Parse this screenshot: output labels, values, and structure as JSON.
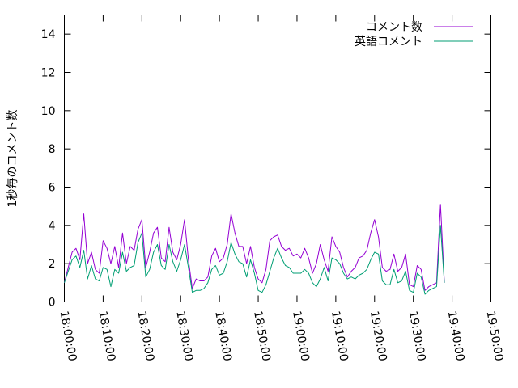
{
  "chart_data": {
    "type": "line",
    "title": "",
    "xlabel": "",
    "ylabel": "1秒毎のコメント数",
    "ylim": [
      0,
      15
    ],
    "yticks": [
      0,
      2,
      4,
      6,
      8,
      10,
      12,
      14
    ],
    "xticks": [
      "18:00:00",
      "18:10:00",
      "18:20:00",
      "18:30:00",
      "18:40:00",
      "18:50:00",
      "19:00:00",
      "19:10:00",
      "19:20:00",
      "19:30:00",
      "19:40:00",
      "19:50:00"
    ],
    "xlim_minutes": [
      0,
      110
    ],
    "grid": false,
    "legend_position": "top-right",
    "series": [
      {
        "name": "コメント数",
        "color": "#9400d3",
        "points": [
          [
            0,
            1.0
          ],
          [
            1,
            1.8
          ],
          [
            2,
            2.6
          ],
          [
            3,
            2.8
          ],
          [
            4,
            2.2
          ],
          [
            5,
            4.6
          ],
          [
            6,
            2.0
          ],
          [
            7,
            2.6
          ],
          [
            8,
            1.7
          ],
          [
            9,
            1.5
          ],
          [
            10,
            3.2
          ],
          [
            11,
            2.8
          ],
          [
            12,
            2.0
          ],
          [
            13,
            2.9
          ],
          [
            14,
            1.8
          ],
          [
            15,
            3.6
          ],
          [
            16,
            2.0
          ],
          [
            17,
            2.9
          ],
          [
            18,
            2.7
          ],
          [
            19,
            3.8
          ],
          [
            20,
            4.3
          ],
          [
            21,
            1.8
          ],
          [
            22,
            2.6
          ],
          [
            23,
            3.6
          ],
          [
            24,
            3.9
          ],
          [
            25,
            2.3
          ],
          [
            26,
            2.1
          ],
          [
            27,
            3.9
          ],
          [
            28,
            2.6
          ],
          [
            29,
            2.2
          ],
          [
            30,
            3.0
          ],
          [
            31,
            4.3
          ],
          [
            32,
            2.2
          ],
          [
            33,
            0.7
          ],
          [
            34,
            1.2
          ],
          [
            35,
            1.1
          ],
          [
            36,
            1.1
          ],
          [
            37,
            1.3
          ],
          [
            38,
            2.4
          ],
          [
            39,
            2.8
          ],
          [
            40,
            2.1
          ],
          [
            41,
            2.3
          ],
          [
            42,
            3.0
          ],
          [
            43,
            4.6
          ],
          [
            44,
            3.6
          ],
          [
            45,
            2.9
          ],
          [
            46,
            2.9
          ],
          [
            47,
            2.0
          ],
          [
            48,
            2.9
          ],
          [
            49,
            1.8
          ],
          [
            50,
            1.2
          ],
          [
            51,
            1.0
          ],
          [
            52,
            1.7
          ],
          [
            53,
            3.2
          ],
          [
            54,
            3.4
          ],
          [
            55,
            3.5
          ],
          [
            56,
            2.9
          ],
          [
            57,
            2.7
          ],
          [
            58,
            2.8
          ],
          [
            59,
            2.4
          ],
          [
            60,
            2.5
          ],
          [
            61,
            2.3
          ],
          [
            62,
            2.8
          ],
          [
            63,
            2.3
          ],
          [
            64,
            1.5
          ],
          [
            65,
            2.0
          ],
          [
            66,
            3.0
          ],
          [
            67,
            2.2
          ],
          [
            68,
            1.6
          ],
          [
            69,
            3.4
          ],
          [
            70,
            2.9
          ],
          [
            71,
            2.6
          ],
          [
            72,
            1.8
          ],
          [
            73,
            1.3
          ],
          [
            74,
            1.6
          ],
          [
            75,
            1.8
          ],
          [
            76,
            2.3
          ],
          [
            77,
            2.4
          ],
          [
            78,
            2.7
          ],
          [
            79,
            3.6
          ],
          [
            80,
            4.3
          ],
          [
            81,
            3.4
          ],
          [
            82,
            1.8
          ],
          [
            83,
            1.6
          ],
          [
            84,
            1.7
          ],
          [
            85,
            2.5
          ],
          [
            86,
            1.6
          ],
          [
            87,
            1.8
          ],
          [
            88,
            2.5
          ],
          [
            89,
            0.9
          ],
          [
            90,
            0.8
          ],
          [
            91,
            1.9
          ],
          [
            92,
            1.7
          ],
          [
            93,
            0.6
          ],
          [
            94,
            0.8
          ],
          [
            95,
            0.9
          ],
          [
            96,
            1.0
          ],
          [
            97,
            5.1
          ],
          [
            98,
            1.0
          ]
        ]
      },
      {
        "name": "英語コメント",
        "color": "#009e73",
        "points": [
          [
            0,
            1.0
          ],
          [
            1,
            1.6
          ],
          [
            2,
            2.2
          ],
          [
            3,
            2.4
          ],
          [
            4,
            1.8
          ],
          [
            5,
            2.7
          ],
          [
            6,
            1.2
          ],
          [
            7,
            1.9
          ],
          [
            8,
            1.2
          ],
          [
            9,
            1.1
          ],
          [
            10,
            1.8
          ],
          [
            11,
            1.7
          ],
          [
            12,
            0.8
          ],
          [
            13,
            1.7
          ],
          [
            14,
            1.5
          ],
          [
            15,
            2.6
          ],
          [
            16,
            1.6
          ],
          [
            17,
            1.8
          ],
          [
            18,
            1.9
          ],
          [
            19,
            3.1
          ],
          [
            20,
            3.6
          ],
          [
            21,
            1.3
          ],
          [
            22,
            1.7
          ],
          [
            23,
            2.6
          ],
          [
            24,
            3.0
          ],
          [
            25,
            1.9
          ],
          [
            26,
            1.7
          ],
          [
            27,
            3.0
          ],
          [
            28,
            2.1
          ],
          [
            29,
            1.6
          ],
          [
            30,
            2.2
          ],
          [
            31,
            3.0
          ],
          [
            32,
            1.8
          ],
          [
            33,
            0.5
          ],
          [
            34,
            0.6
          ],
          [
            35,
            0.6
          ],
          [
            36,
            0.7
          ],
          [
            37,
            1.0
          ],
          [
            38,
            1.7
          ],
          [
            39,
            1.9
          ],
          [
            40,
            1.4
          ],
          [
            41,
            1.5
          ],
          [
            42,
            2.1
          ],
          [
            43,
            3.1
          ],
          [
            44,
            2.5
          ],
          [
            45,
            2.1
          ],
          [
            46,
            2.0
          ],
          [
            47,
            1.3
          ],
          [
            48,
            2.2
          ],
          [
            49,
            1.5
          ],
          [
            50,
            0.6
          ],
          [
            51,
            0.5
          ],
          [
            52,
            0.9
          ],
          [
            53,
            1.6
          ],
          [
            54,
            2.3
          ],
          [
            55,
            2.8
          ],
          [
            56,
            2.3
          ],
          [
            57,
            1.9
          ],
          [
            58,
            1.8
          ],
          [
            59,
            1.5
          ],
          [
            60,
            1.5
          ],
          [
            61,
            1.5
          ],
          [
            62,
            1.7
          ],
          [
            63,
            1.5
          ],
          [
            64,
            1.0
          ],
          [
            65,
            0.8
          ],
          [
            66,
            1.2
          ],
          [
            67,
            1.8
          ],
          [
            68,
            1.1
          ],
          [
            69,
            2.3
          ],
          [
            70,
            2.2
          ],
          [
            71,
            2.0
          ],
          [
            72,
            1.5
          ],
          [
            73,
            1.2
          ],
          [
            74,
            1.3
          ],
          [
            75,
            1.2
          ],
          [
            76,
            1.4
          ],
          [
            77,
            1.5
          ],
          [
            78,
            1.7
          ],
          [
            79,
            2.2
          ],
          [
            80,
            2.6
          ],
          [
            81,
            2.5
          ],
          [
            82,
            1.1
          ],
          [
            83,
            0.9
          ],
          [
            84,
            0.9
          ],
          [
            85,
            1.7
          ],
          [
            86,
            1.0
          ],
          [
            87,
            1.1
          ],
          [
            88,
            1.6
          ],
          [
            89,
            0.6
          ],
          [
            90,
            0.5
          ],
          [
            91,
            1.5
          ],
          [
            92,
            1.3
          ],
          [
            93,
            0.4
          ],
          [
            94,
            0.6
          ],
          [
            95,
            0.7
          ],
          [
            96,
            0.8
          ],
          [
            97,
            4.0
          ],
          [
            98,
            1.0
          ]
        ]
      }
    ]
  }
}
